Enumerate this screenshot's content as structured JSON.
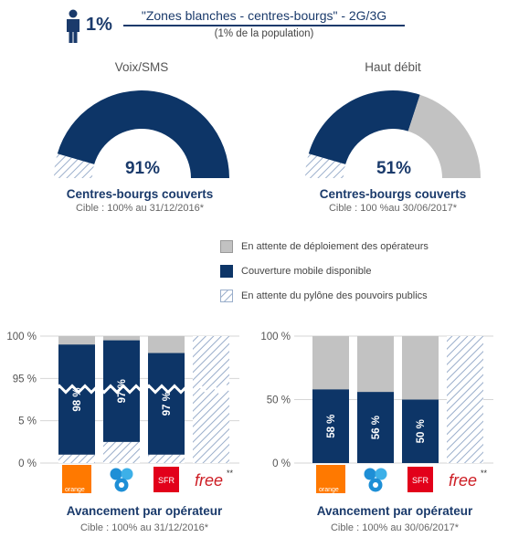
{
  "header": {
    "percent": "1%",
    "title": "\"Zones blanches - centres-bourgs\" - 2G/3G",
    "subtitle": "(1% de la population)"
  },
  "donuts": [
    {
      "title": "Voix/SMS",
      "value_label": "91%",
      "covered": 91,
      "pending_operators": 0,
      "pending_public": 9,
      "coverage_label": "Centres-bourgs couverts",
      "target": "Cible : 100% au 31/12/2016*"
    },
    {
      "title": "Haut débit",
      "value_label": "51%",
      "covered": 51,
      "pending_operators": 40,
      "pending_public": 9,
      "coverage_label": "Centres-bourgs couverts",
      "target": "Cible : 100 %au 30/06/2017*"
    }
  ],
  "legend": [
    {
      "label": "En attente de déploiement des opérateurs",
      "kind": "gray"
    },
    {
      "label": "Couverture mobile disponible",
      "kind": "navy"
    },
    {
      "label": "En attente du pylône des pouvoirs publics",
      "kind": "hatch"
    }
  ],
  "colors": {
    "navy": "#0d3567",
    "gray": "#c2c2c2",
    "hatch": "#9aaecb"
  },
  "operators": [
    {
      "name": "orange",
      "label": "orange",
      "color": "#ff7900"
    },
    {
      "name": "bouygues",
      "label": "",
      "color": "#1e8fd6"
    },
    {
      "name": "sfr",
      "label": "SFR",
      "color": "#e2001a"
    },
    {
      "name": "free",
      "label": "free",
      "suffix": "**",
      "color": "#cd1e25"
    }
  ],
  "chart_data": [
    {
      "type": "bar",
      "stacked": true,
      "axis_break": "between 5 % and 95 %",
      "categories": [
        "orange",
        "bouygues",
        "SFR",
        "free"
      ],
      "y_ticks": [
        "100 %",
        "95 %",
        "5 %",
        "0 %"
      ],
      "series": [
        {
          "name": "Couverture mobile disponible",
          "values": [
            98,
            97,
            97,
            0
          ],
          "labels": [
            "98 %",
            "97 %",
            "97 %",
            ""
          ]
        },
        {
          "name": "En attente de déploiement des opérateurs",
          "values": [
            1,
            0.5,
            2,
            0
          ]
        },
        {
          "name": "En attente du pylône des pouvoirs publics",
          "values": [
            1,
            2.5,
            1,
            100
          ]
        }
      ],
      "title": "Avancement par opérateur",
      "subtitle": "Cible : 100% au 31/12/2016*",
      "ylim": [
        0,
        100
      ],
      "legend": "shared"
    },
    {
      "type": "bar",
      "stacked": true,
      "categories": [
        "orange",
        "bouygues",
        "SFR",
        "free"
      ],
      "y_ticks": [
        "100 %",
        "50 %",
        "0 %"
      ],
      "series": [
        {
          "name": "Couverture mobile disponible",
          "values": [
            58,
            56,
            50,
            0
          ],
          "labels": [
            "58 %",
            "56 %",
            "50 %",
            ""
          ]
        },
        {
          "name": "En attente de déploiement des opérateurs",
          "values": [
            42,
            44,
            50,
            0
          ]
        },
        {
          "name": "En attente du pylône des pouvoirs publics",
          "values": [
            0,
            0,
            0,
            100
          ]
        }
      ],
      "title": "Avancement par opérateur",
      "subtitle": "Cible : 100% au 30/06/2017*",
      "ylim": [
        0,
        100
      ],
      "legend": "shared"
    }
  ]
}
